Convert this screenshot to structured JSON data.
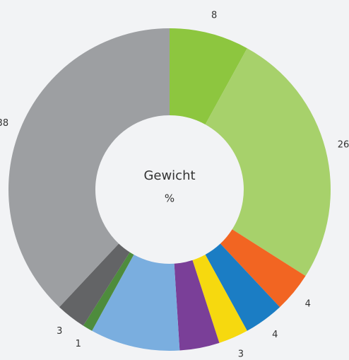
{
  "chart_data": {
    "type": "donut",
    "center_label": "Gewicht",
    "unit": "%",
    "values": [
      8,
      26,
      4,
      4,
      3,
      4,
      9,
      1,
      3,
      38
    ],
    "colors": [
      "#8dc63f",
      "#a7d16b",
      "#f26522",
      "#1b7dc4",
      "#f6d90f",
      "#7a3f98",
      "#7aaedf",
      "#4e8c3d",
      "#636466",
      "#9d9fa2"
    ]
  }
}
